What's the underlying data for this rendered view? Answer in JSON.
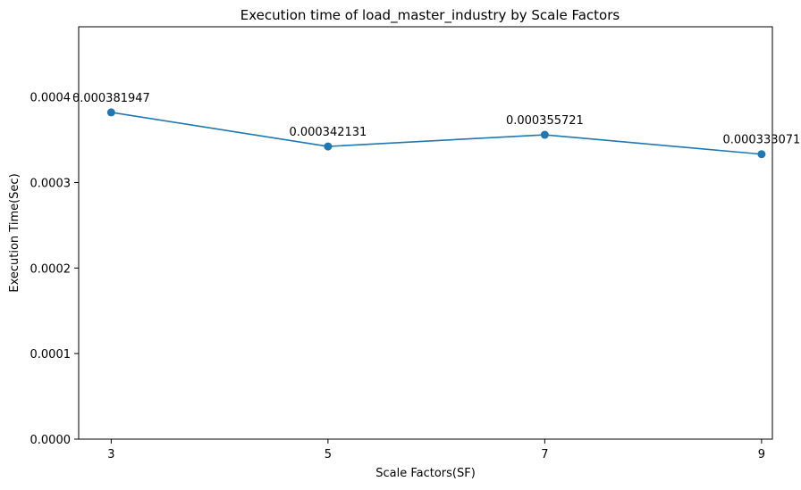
{
  "chart_data": {
    "type": "line",
    "title": "Execution time of load_master_industry by Scale Factors",
    "xlabel": "Scale Factors(SF)",
    "ylabel": "Execution Time(Sec)",
    "x": [
      3,
      5,
      7,
      9
    ],
    "y": [
      0.000381947,
      0.000342131,
      0.000355721,
      0.000333071
    ],
    "point_labels": [
      "0.000381947",
      "0.000342131",
      "0.000355721",
      "0.000333071"
    ],
    "xlim": [
      2.7,
      9.1
    ],
    "ylim": [
      0,
      0.000482
    ],
    "x_ticks": [
      3,
      5,
      7,
      9
    ],
    "x_tick_labels": [
      "3",
      "5",
      "7",
      "9"
    ],
    "y_ticks": [
      0,
      0.0001,
      0.0002,
      0.0003,
      0.0004
    ],
    "y_tick_labels": [
      "0.0000",
      "0.0001",
      "0.0002",
      "0.0003",
      "0.0004"
    ],
    "grid": false,
    "legend": "none",
    "line_color": "#1f77b4",
    "marker": "circle"
  }
}
